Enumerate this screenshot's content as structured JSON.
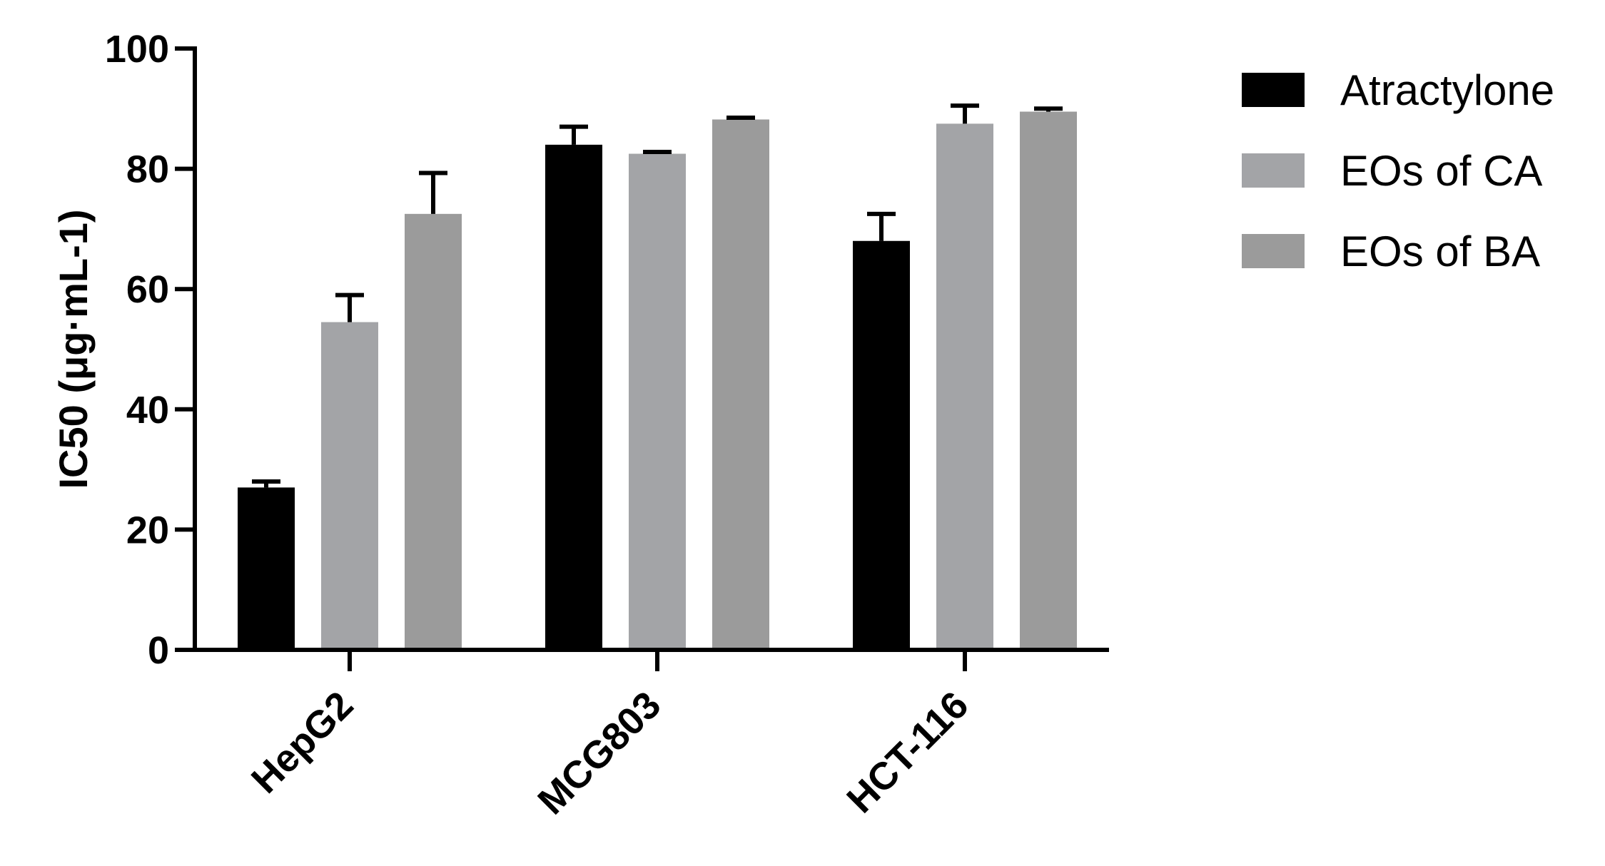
{
  "chart_data": {
    "type": "bar",
    "title": "",
    "xlabel": "",
    "ylabel": "IC50 (μg·mL-1)",
    "ylim": [
      0,
      100
    ],
    "yticks": [
      "0",
      "20",
      "40",
      "60",
      "80",
      "100"
    ],
    "categories": [
      "HepG2",
      "MCG803",
      "HCT-116"
    ],
    "series": [
      {
        "name": "Atractylone",
        "color": "#000000",
        "values": [
          27,
          84,
          68
        ],
        "errors": [
          1,
          3,
          4.5
        ]
      },
      {
        "name": "EOs of CA",
        "color": "#a3a4a7",
        "values": [
          54.5,
          82.5,
          87.5
        ],
        "errors": [
          4.5,
          0.3,
          3
        ]
      },
      {
        "name": "EOs of BA",
        "color": "#9b9b9b",
        "values": [
          72.5,
          88.2,
          89.5
        ],
        "errors": [
          6.8,
          0.3,
          0.5
        ]
      }
    ],
    "legend": "right",
    "grid": false
  }
}
